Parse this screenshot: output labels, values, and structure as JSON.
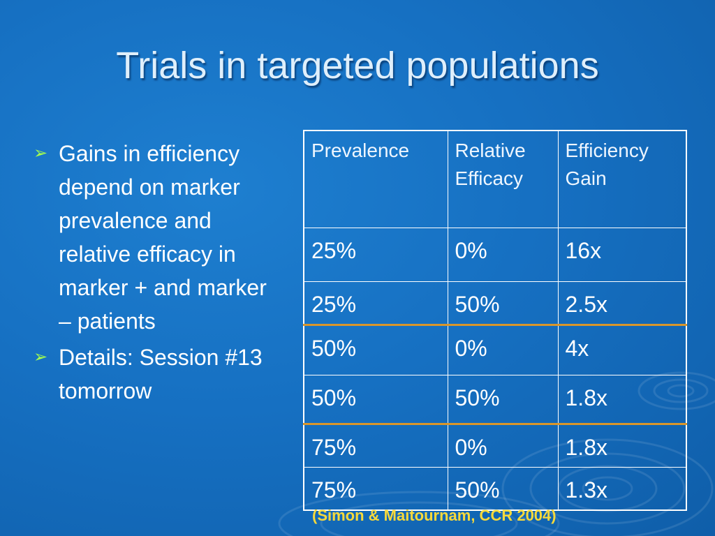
{
  "title": "Trials in targeted populations",
  "bullets": [
    {
      "marker": "➢",
      "text": "Gains in efficiency depend on marker prevalence and relative efficacy in marker + and marker – patients"
    },
    {
      "marker": "➢",
      "text": "Details:  Session #13 tomorrow"
    }
  ],
  "table": {
    "headers": [
      "Prevalence",
      "Relative Efficacy",
      "Efficiency Gain"
    ],
    "rows": [
      [
        "25%",
        "0%",
        "16x"
      ],
      [
        "25%",
        "50%",
        "2.5x"
      ],
      [
        "50%",
        "0%",
        "4x"
      ],
      [
        "50%",
        "50%",
        "1.8x"
      ],
      [
        "75%",
        "0%",
        "1.8x"
      ],
      [
        "75%",
        "50%",
        "1.3x"
      ]
    ]
  },
  "citation": "(Simon & Maitournam, CCR 2004)",
  "colors": {
    "background": "#1670c2",
    "title_text": "#dfeffb",
    "bullet_marker": "#a6ff4d",
    "row_divider_accent": "#d9962b",
    "citation_text": "#f7d93b"
  }
}
